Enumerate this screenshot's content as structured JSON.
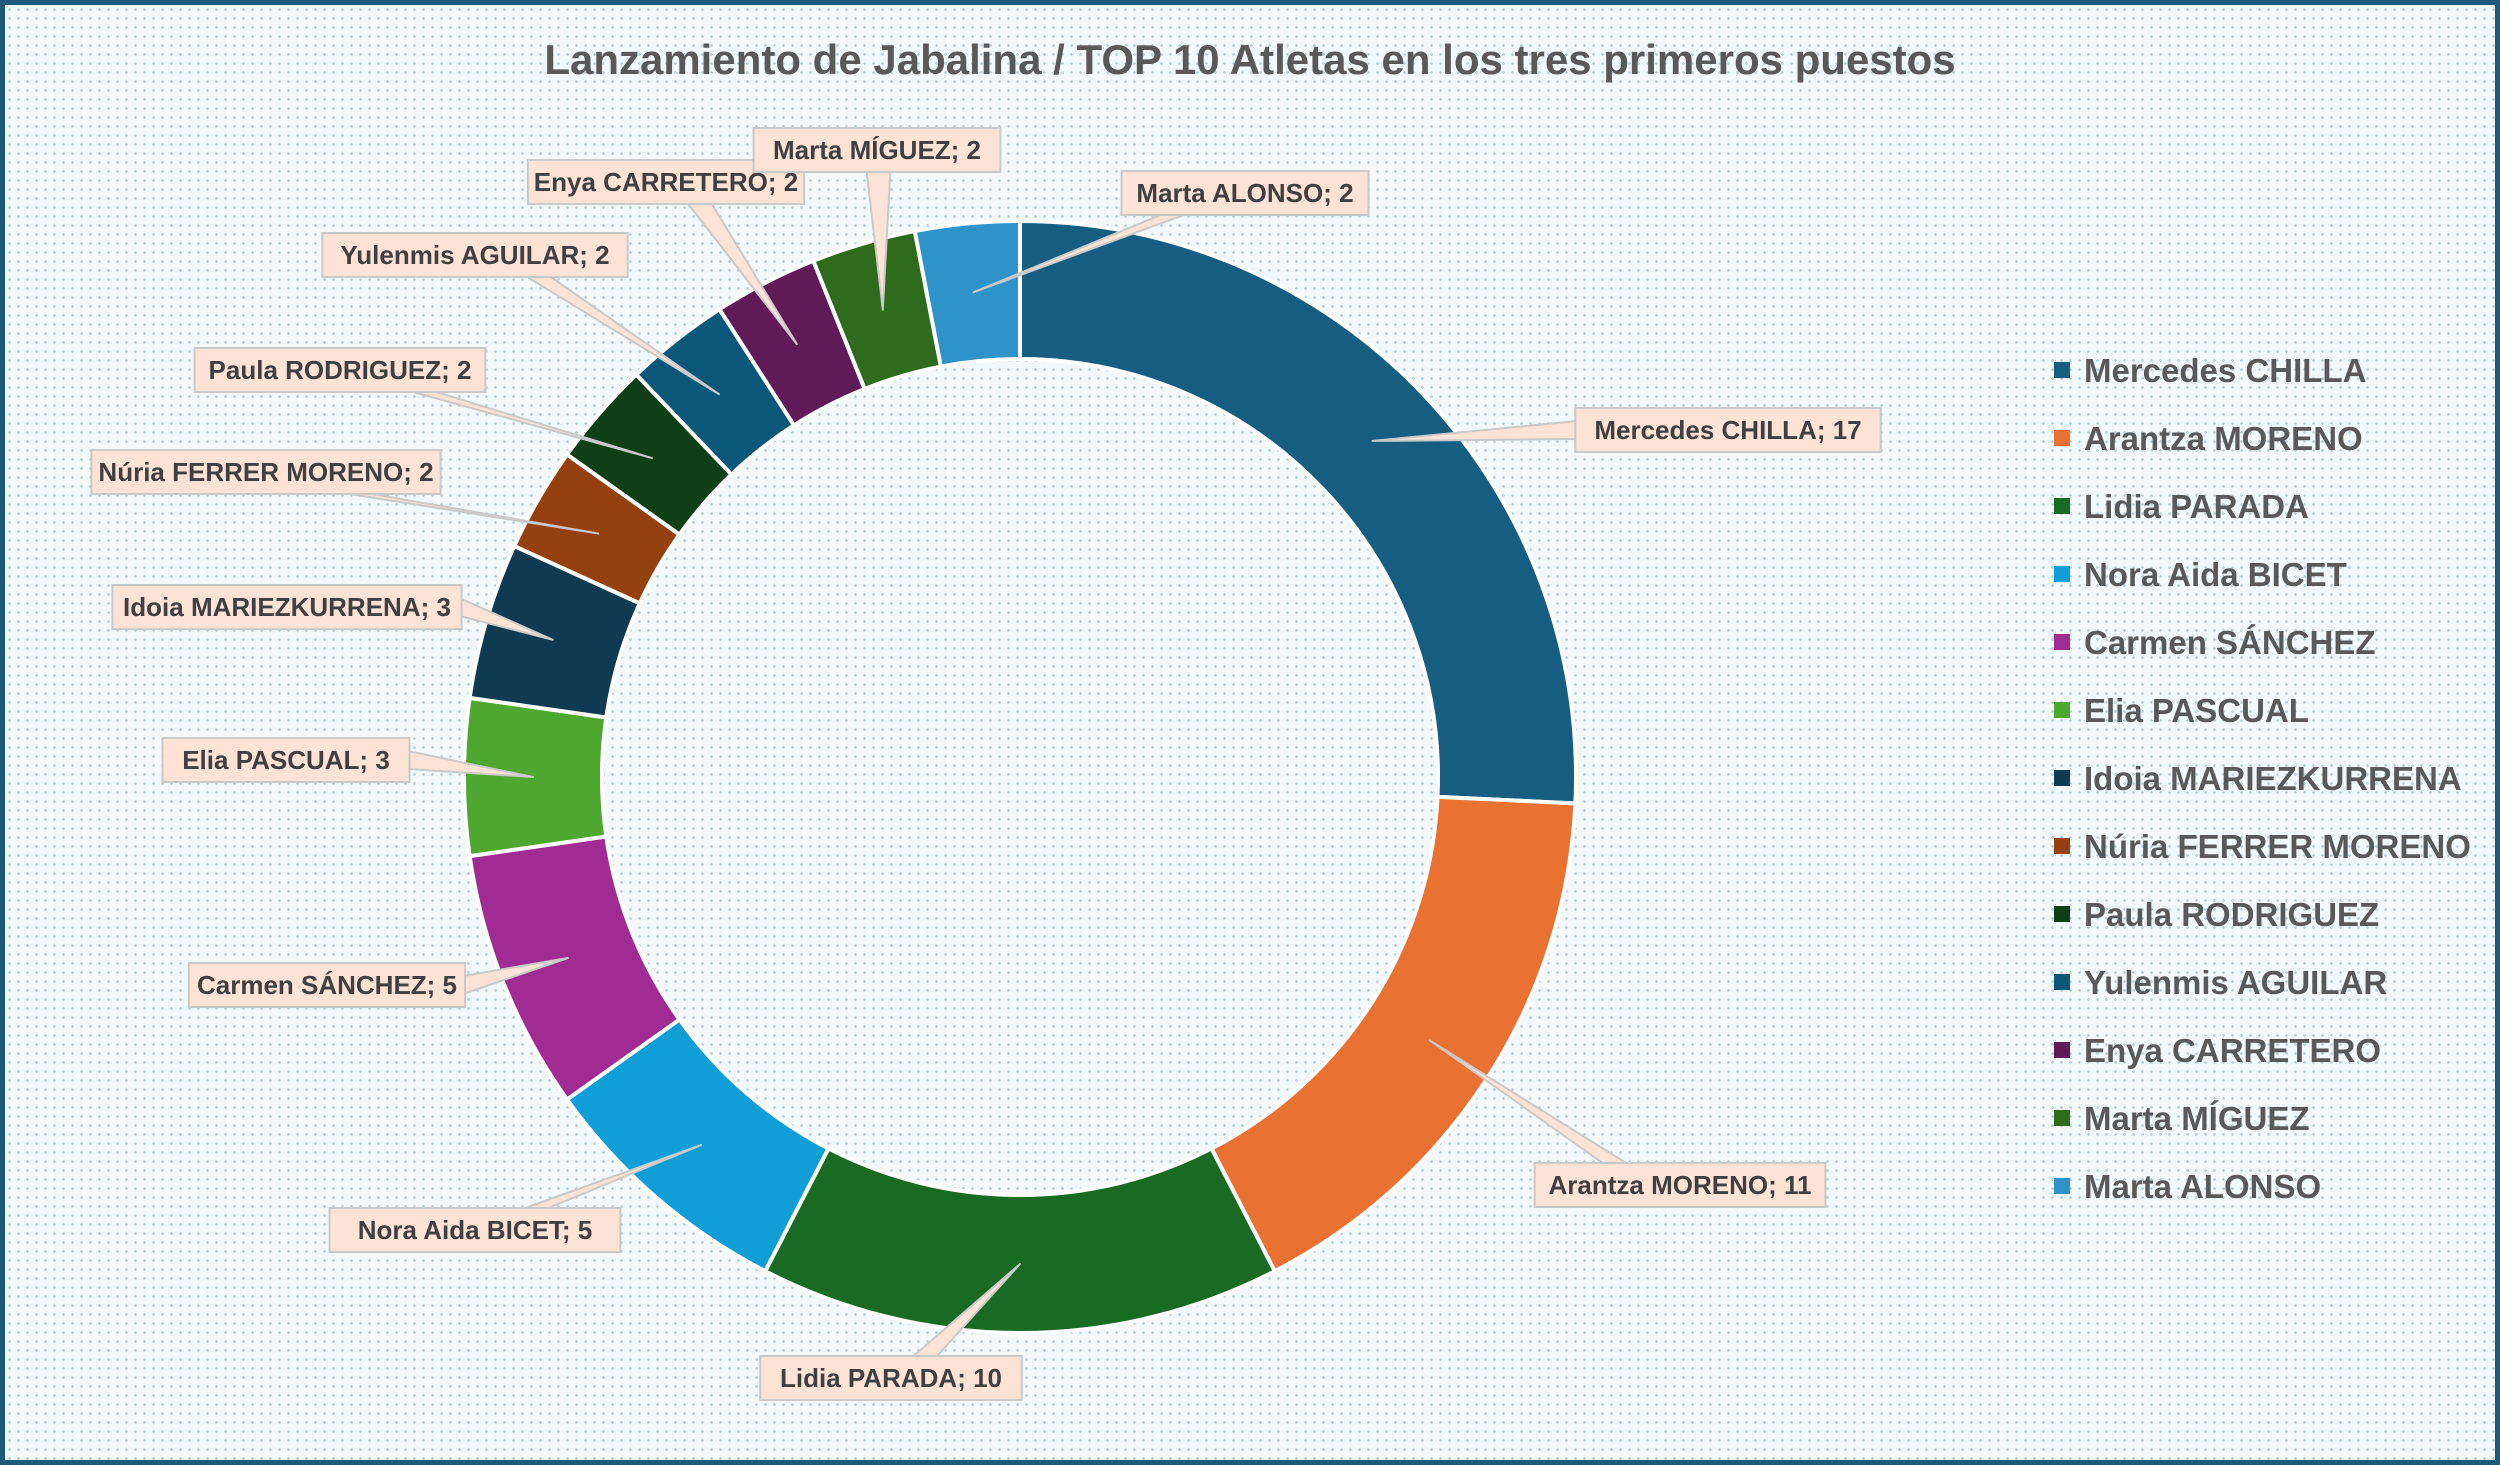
{
  "chart_data": {
    "type": "doughnut",
    "title": "Lanzamiento de Jabalina / TOP 10 Atletas en los tres primeros puestos",
    "legend_position": "right",
    "series": [
      {
        "name": "Mercedes CHILLA",
        "value": 17,
        "label": "Mercedes CHILLA; 17",
        "color": "#165e81"
      },
      {
        "name": "Arantza MORENO",
        "value": 11,
        "label": "Arantza MORENO; 11",
        "color": "#e97132"
      },
      {
        "name": "Lidia PARADA",
        "value": 10,
        "label": "Lidia PARADA; 10",
        "color": "#196b24"
      },
      {
        "name": "Nora Aida BICET",
        "value": 5,
        "label": "Nora Aida BICET; 5",
        "color": "#0f9ed5"
      },
      {
        "name": "Carmen SÁNCHEZ",
        "value": 5,
        "label": "Carmen SÁNCHEZ; 5",
        "color": "#a02b93"
      },
      {
        "name": "Elia PASCUAL",
        "value": 3,
        "label": "Elia PASCUAL; 3",
        "color": "#4ea72e"
      },
      {
        "name": "Idoia MARIEZKURRENA",
        "value": 3,
        "label": "Idoia MARIEZKURRENA; 3",
        "color": "#0e3a52"
      },
      {
        "name": "Núria FERRER MORENO",
        "value": 2,
        "label": "Núria FERRER MORENO; 2",
        "color": "#94400f"
      },
      {
        "name": "Paula RODRIGUEZ",
        "value": 2,
        "label": "Paula RODRIGUEZ; 2",
        "color": "#0f3f16"
      },
      {
        "name": "Yulenmis AGUILAR",
        "value": 2,
        "label": "Yulenmis AGUILAR; 2",
        "color": "#0b577a"
      },
      {
        "name": "Enya CARRETERO",
        "value": 2,
        "label": "Enya CARRETERO; 2",
        "color": "#5f1a57"
      },
      {
        "name": "Marta MÍGUEZ",
        "value": 2,
        "label": "Marta MÍGUEZ; 2",
        "color": "#2e6b1d"
      },
      {
        "name": "Marta ALONSO",
        "value": 2,
        "label": "Marta ALONSO; 2",
        "color": "#2e93c8"
      }
    ]
  }
}
